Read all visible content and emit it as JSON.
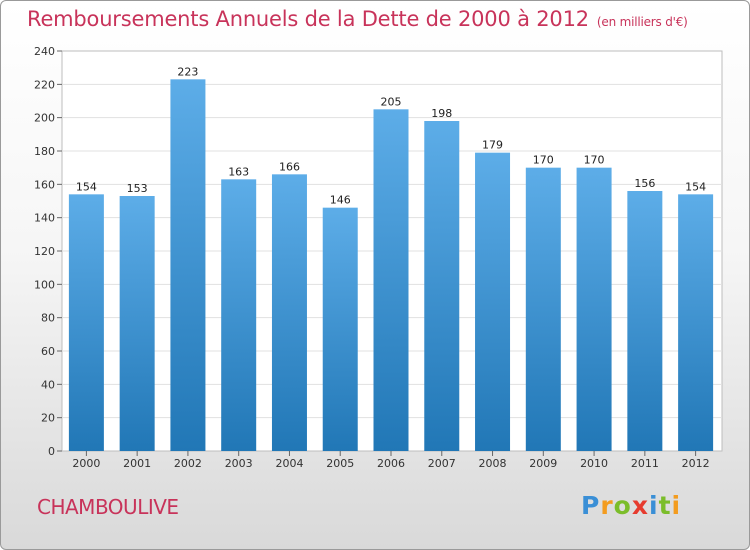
{
  "header": {
    "title": "Remboursements Annuels de la Dette de 2000 à 2012",
    "unit": "(en milliers d'€)"
  },
  "commune": "CHAMBOULIVE",
  "logo": {
    "text": "Proxiti",
    "letter_colors": [
      "#3a8fd6",
      "#f39c1f",
      "#7bbd2a",
      "#e63b2e",
      "#3a8fd6",
      "#7bbd2a",
      "#f39c1f"
    ]
  },
  "colors": {
    "bar_top": "#5dade8",
    "bar_bottom": "#2177b6",
    "title": "#c8335a"
  },
  "chart_data": {
    "type": "bar",
    "title": "Remboursements Annuels de la Dette de 2000 à 2012",
    "subtitle": "(en milliers d'€)",
    "categories": [
      "2000",
      "2001",
      "2002",
      "2003",
      "2004",
      "2005",
      "2006",
      "2007",
      "2008",
      "2009",
      "2010",
      "2011",
      "2012"
    ],
    "values": [
      154,
      153,
      223,
      163,
      166,
      146,
      205,
      198,
      179,
      170,
      170,
      156,
      154
    ],
    "ylim": [
      0,
      240
    ],
    "yticks": [
      0,
      20,
      40,
      60,
      80,
      100,
      120,
      140,
      160,
      180,
      200,
      220,
      240
    ],
    "grid": true,
    "legend": "none"
  }
}
